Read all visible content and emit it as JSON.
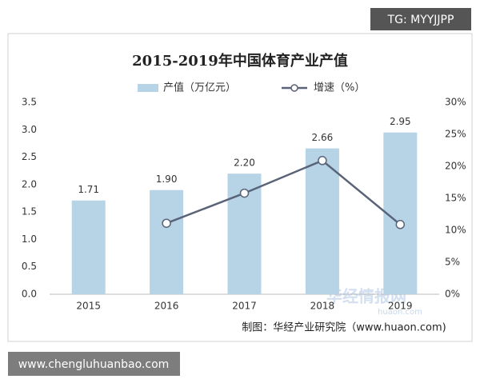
{
  "chart_data": {
    "type": "bar-line",
    "title": "2015-2019年中国体育产业产值",
    "categories": [
      "2015",
      "2016",
      "2017",
      "2018",
      "2019"
    ],
    "series": [
      {
        "name": "产值（万亿元）",
        "color": "#b7d3e6",
        "type": "bar",
        "values": [
          1.71,
          1.9,
          2.2,
          2.66,
          2.95
        ],
        "value_labels": [
          "1.71",
          "1.90",
          "2.20",
          "2.66",
          "2.95"
        ]
      },
      {
        "name": "增速（%）",
        "color": "#5a6478",
        "type": "line",
        "axis": "y2",
        "values": [
          null,
          11.1,
          15.8,
          20.9,
          10.9
        ]
      }
    ],
    "ylim": [
      0,
      3.5
    ],
    "yticks": [
      {
        "value": 0,
        "label": "0.0"
      },
      0.5,
      {
        "value": 1,
        "label": "1.0"
      },
      1.5,
      {
        "value": 2,
        "label": "2.0"
      },
      2.5,
      {
        "value": 3,
        "label": "3.0"
      },
      3.5
    ],
    "y2lim": [
      0,
      30
    ],
    "y2ticks": [
      {
        "value": 0,
        "label": "0%"
      },
      {
        "value": 5,
        "label": "5%"
      },
      {
        "value": 10,
        "label": "10%"
      },
      {
        "value": 15,
        "label": "15%"
      },
      {
        "value": 20,
        "label": "20%"
      },
      {
        "value": 25,
        "label": "25%"
      },
      {
        "value": 30,
        "label": "30%"
      }
    ],
    "grid": false,
    "source": "制图：华经产业研究院（www.huaon.com)"
  },
  "overlays": {
    "badge": "TG: MYYJJPP",
    "footer": "www.chengluhuanbao.com",
    "watermark": "华经情报网",
    "watermark_url": "huaon.com"
  }
}
